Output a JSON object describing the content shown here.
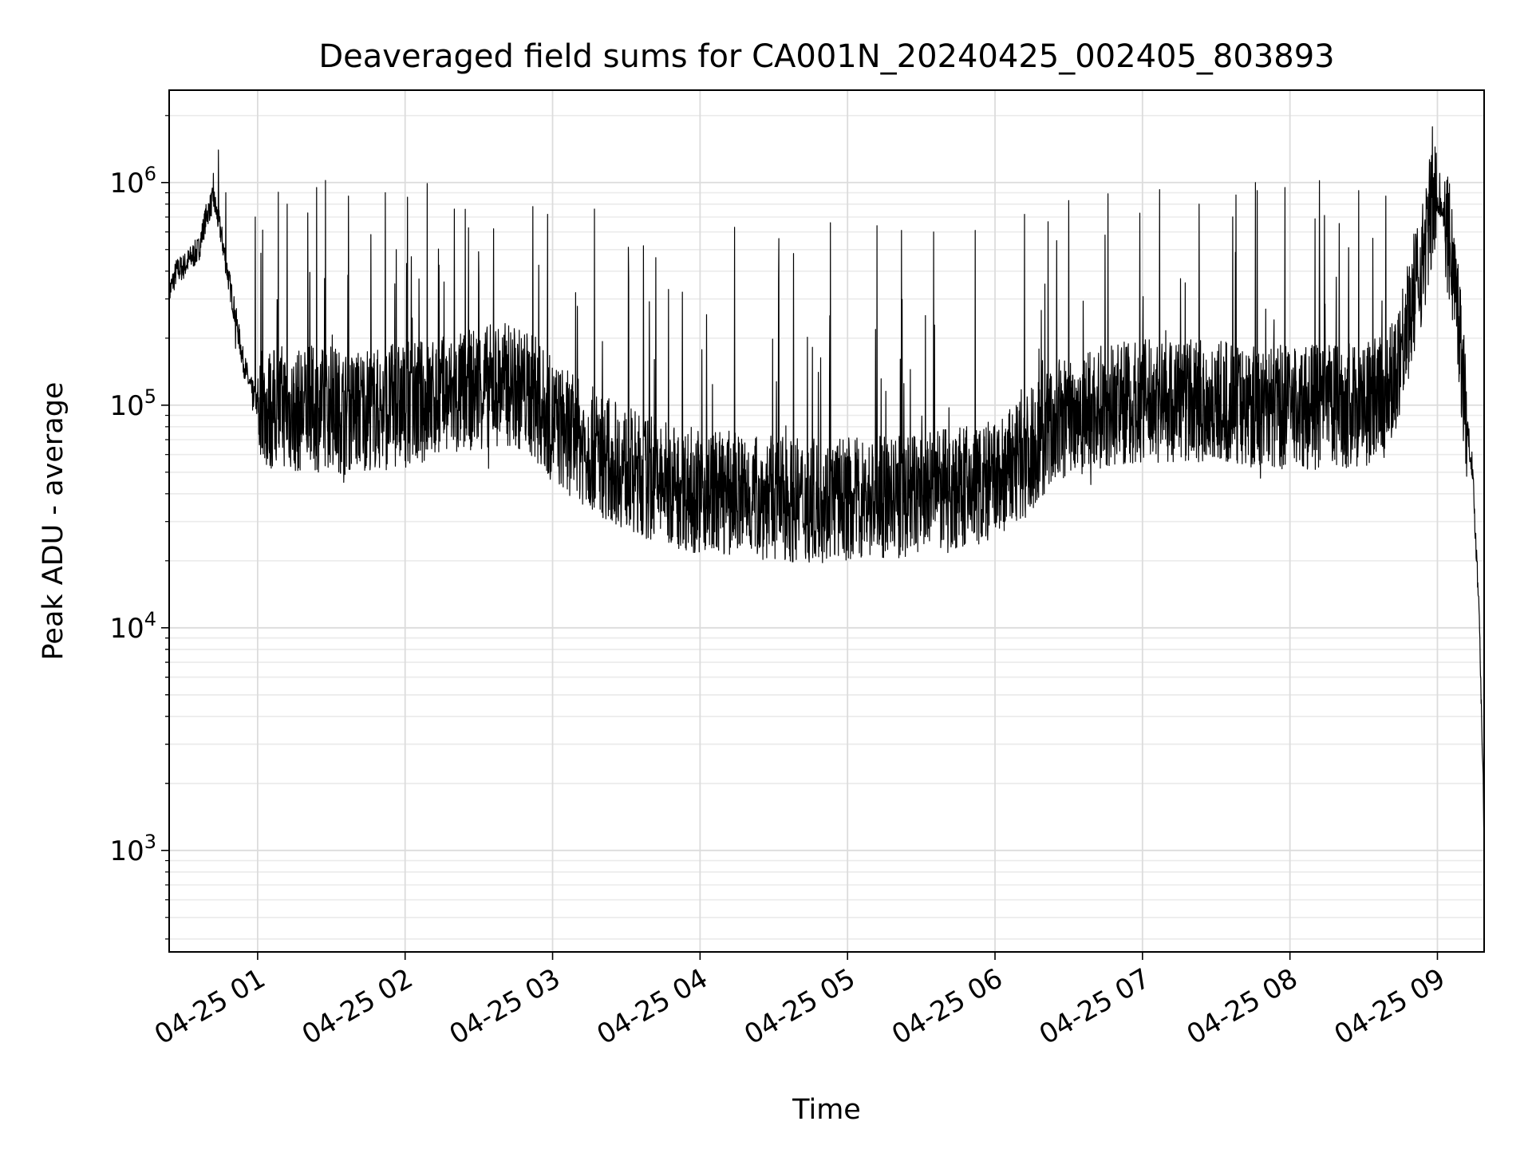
{
  "chart_data": {
    "type": "line",
    "title": "Deaveraged field sums for CA001N_20240425_002405_803893",
    "xlabel": "Time",
    "ylabel": "Peak ADU - average",
    "yscale": "log",
    "grid": true,
    "grid_minor": true,
    "x_range": [
      "04-25 00:24",
      "04-25 09:19"
    ],
    "ylim": [
      350,
      2600000
    ],
    "x_ticks": [
      {
        "time": "04-25 01:00",
        "label": "04-25 01"
      },
      {
        "time": "04-25 02:00",
        "label": "04-25 02"
      },
      {
        "time": "04-25 03:00",
        "label": "04-25 03"
      },
      {
        "time": "04-25 04:00",
        "label": "04-25 04"
      },
      {
        "time": "04-25 05:00",
        "label": "04-25 05"
      },
      {
        "time": "04-25 06:00",
        "label": "04-25 06"
      },
      {
        "time": "04-25 07:00",
        "label": "04-25 07"
      },
      {
        "time": "04-25 08:00",
        "label": "04-25 08"
      },
      {
        "time": "04-25 09:00",
        "label": "04-25 09"
      }
    ],
    "y_ticks": [
      {
        "value": 1000,
        "base": "10",
        "exp": "3"
      },
      {
        "value": 10000,
        "base": "10",
        "exp": "4"
      },
      {
        "value": 100000,
        "base": "10",
        "exp": "5"
      },
      {
        "value": 1000000,
        "base": "10",
        "exp": "6"
      }
    ],
    "series": [
      {
        "color": "#000000",
        "points": [
          [
            "04-25 00:24",
            320000
          ],
          [
            "04-25 00:27",
            400000
          ],
          [
            "04-25 00:30",
            420000
          ],
          [
            "04-25 00:33",
            460000
          ],
          [
            "04-25 00:36",
            500000
          ],
          [
            "04-25 00:39",
            700000
          ],
          [
            "04-25 00:42",
            850000
          ],
          [
            "04-25 00:45",
            600000
          ],
          [
            "04-25 00:48",
            380000
          ],
          [
            "04-25 00:51",
            250000
          ],
          [
            "04-25 00:54",
            160000
          ],
          [
            "04-25 00:57",
            120000
          ],
          [
            "04-25 01:00",
            100000
          ],
          [
            "04-25 01:05",
            95000
          ],
          [
            "04-25 01:10",
            100000
          ],
          [
            "04-25 01:15",
            92000
          ],
          [
            "04-25 01:20",
            98000
          ],
          [
            "04-25 01:25",
            95000
          ],
          [
            "04-25 01:30",
            100000
          ],
          [
            "04-25 01:35",
            92000
          ],
          [
            "04-25 01:40",
            95000
          ],
          [
            "04-25 01:45",
            98000
          ],
          [
            "04-25 01:50",
            95000
          ],
          [
            "04-25 01:55",
            100000
          ],
          [
            "04-25 02:00",
            100000
          ],
          [
            "04-25 02:10",
            105000
          ],
          [
            "04-25 02:20",
            110000
          ],
          [
            "04-25 02:30",
            120000
          ],
          [
            "04-25 02:40",
            125000
          ],
          [
            "04-25 02:50",
            115000
          ],
          [
            "04-25 03:00",
            85000
          ],
          [
            "04-25 03:10",
            70000
          ],
          [
            "04-25 03:20",
            60000
          ],
          [
            "04-25 03:30",
            52000
          ],
          [
            "04-25 03:40",
            46000
          ],
          [
            "04-25 03:50",
            43000
          ],
          [
            "04-25 04:00",
            41000
          ],
          [
            "04-25 04:15",
            40000
          ],
          [
            "04-25 04:30",
            38000
          ],
          [
            "04-25 04:45",
            37000
          ],
          [
            "04-25 05:00",
            38000
          ],
          [
            "04-25 05:15",
            38000
          ],
          [
            "04-25 05:30",
            40000
          ],
          [
            "04-25 05:45",
            42000
          ],
          [
            "04-25 06:00",
            45000
          ],
          [
            "04-25 06:10",
            55000
          ],
          [
            "04-25 06:20",
            75000
          ],
          [
            "04-25 06:30",
            90000
          ],
          [
            "04-25 06:45",
            100000
          ],
          [
            "04-25 07:00",
            105000
          ],
          [
            "04-25 07:15",
            105000
          ],
          [
            "04-25 07:30",
            102000
          ],
          [
            "04-25 07:45",
            100000
          ],
          [
            "04-25 08:00",
            98000
          ],
          [
            "04-25 08:15",
            98000
          ],
          [
            "04-25 08:30",
            100000
          ],
          [
            "04-25 08:40",
            110000
          ],
          [
            "04-25 08:45",
            180000
          ],
          [
            "04-25 08:50",
            300000
          ],
          [
            "04-25 08:54",
            450000
          ],
          [
            "04-25 08:57",
            700000
          ],
          [
            "04-25 09:00",
            850000
          ],
          [
            "04-25 09:03",
            700000
          ],
          [
            "04-25 09:06",
            450000
          ],
          [
            "04-25 09:09",
            220000
          ],
          [
            "04-25 09:12",
            80000
          ],
          [
            "04-25 09:14",
            55000
          ],
          [
            "04-25 09:15",
            35000
          ],
          [
            "04-25 09:16",
            20000
          ],
          [
            "04-25 09:17",
            12000
          ],
          [
            "04-25 09:18",
            4000
          ],
          [
            "04-25 09:19",
            1200
          ]
        ],
        "spikes": [
          [
            "04-25 00:42",
            1100000
          ],
          [
            "04-25 00:44",
            1400000
          ],
          [
            "04-25 00:47",
            900000
          ],
          [
            "04-25 00:59",
            700000
          ],
          [
            "04-25 01:12",
            800000
          ],
          [
            "04-25 01:24",
            950000
          ],
          [
            "04-25 01:37",
            870000
          ],
          [
            "04-25 01:52",
            900000
          ],
          [
            "04-25 02:01",
            860000
          ],
          [
            "04-25 02:09",
            990000
          ],
          [
            "04-25 02:20",
            760000
          ],
          [
            "04-25 02:36",
            620000
          ],
          [
            "04-25 02:52",
            780000
          ],
          [
            "04-25 02:58",
            720000
          ],
          [
            "04-25 03:17",
            760000
          ],
          [
            "04-25 03:37",
            520000
          ],
          [
            "04-25 03:42",
            460000
          ],
          [
            "04-25 03:53",
            530000
          ],
          [
            "04-25 04:14",
            630000
          ],
          [
            "04-25 04:32",
            560000
          ],
          [
            "04-25 04:38",
            480000
          ],
          [
            "04-25 04:53",
            660000
          ],
          [
            "04-25 05:12",
            640000
          ],
          [
            "04-25 05:22",
            610000
          ],
          [
            "04-25 05:35",
            600000
          ],
          [
            "04-25 05:52",
            610000
          ],
          [
            "04-25 06:12",
            720000
          ],
          [
            "04-25 06:30",
            830000
          ],
          [
            "04-25 06:46",
            890000
          ],
          [
            "04-25 07:07",
            930000
          ],
          [
            "04-25 07:23",
            800000
          ],
          [
            "04-25 07:38",
            880000
          ],
          [
            "04-25 07:46",
            1000000
          ],
          [
            "04-25 07:58",
            950000
          ],
          [
            "04-25 08:12",
            1020000
          ],
          [
            "04-25 08:28",
            920000
          ],
          [
            "04-25 08:39",
            870000
          ],
          [
            "04-25 08:58",
            1780000
          ],
          [
            "04-25 09:01",
            1100000
          ]
        ],
        "dips": [
          [
            "04-25 00:51",
            180000
          ],
          [
            "04-25 00:58",
            95000
          ],
          [
            "04-25 01:04",
            60000
          ],
          [
            "04-25 01:15",
            55000
          ],
          [
            "04-25 01:29",
            60000
          ],
          [
            "04-25 01:35",
            45000
          ],
          [
            "04-25 01:47",
            62000
          ],
          [
            "04-25 02:05",
            58000
          ],
          [
            "04-25 02:21",
            62000
          ],
          [
            "04-25 02:34",
            52000
          ],
          [
            "04-25 02:54",
            55000
          ],
          [
            "04-25 03:06",
            42000
          ],
          [
            "04-25 03:20",
            33000
          ],
          [
            "04-25 03:33",
            27000
          ],
          [
            "04-25 03:40",
            25000
          ],
          [
            "04-25 03:53",
            24000
          ],
          [
            "04-25 04:06",
            27000
          ],
          [
            "04-25 04:19",
            26000
          ],
          [
            "04-25 04:35",
            26000
          ],
          [
            "04-25 04:48",
            27000
          ],
          [
            "04-25 05:06",
            25000
          ],
          [
            "04-25 05:19",
            27000
          ],
          [
            "04-25 05:33",
            28000
          ],
          [
            "04-25 05:49",
            28000
          ],
          [
            "04-25 06:04",
            30000
          ],
          [
            "04-25 06:20",
            40000
          ],
          [
            "04-25 06:39",
            44000
          ],
          [
            "04-25 06:56",
            55000
          ],
          [
            "04-25 07:12",
            60000
          ],
          [
            "04-25 07:32",
            58000
          ],
          [
            "04-25 07:48",
            47000
          ],
          [
            "04-25 08:05",
            57000
          ],
          [
            "04-25 08:22",
            60000
          ],
          [
            "04-25 08:35",
            62000
          ]
        ]
      }
    ]
  }
}
